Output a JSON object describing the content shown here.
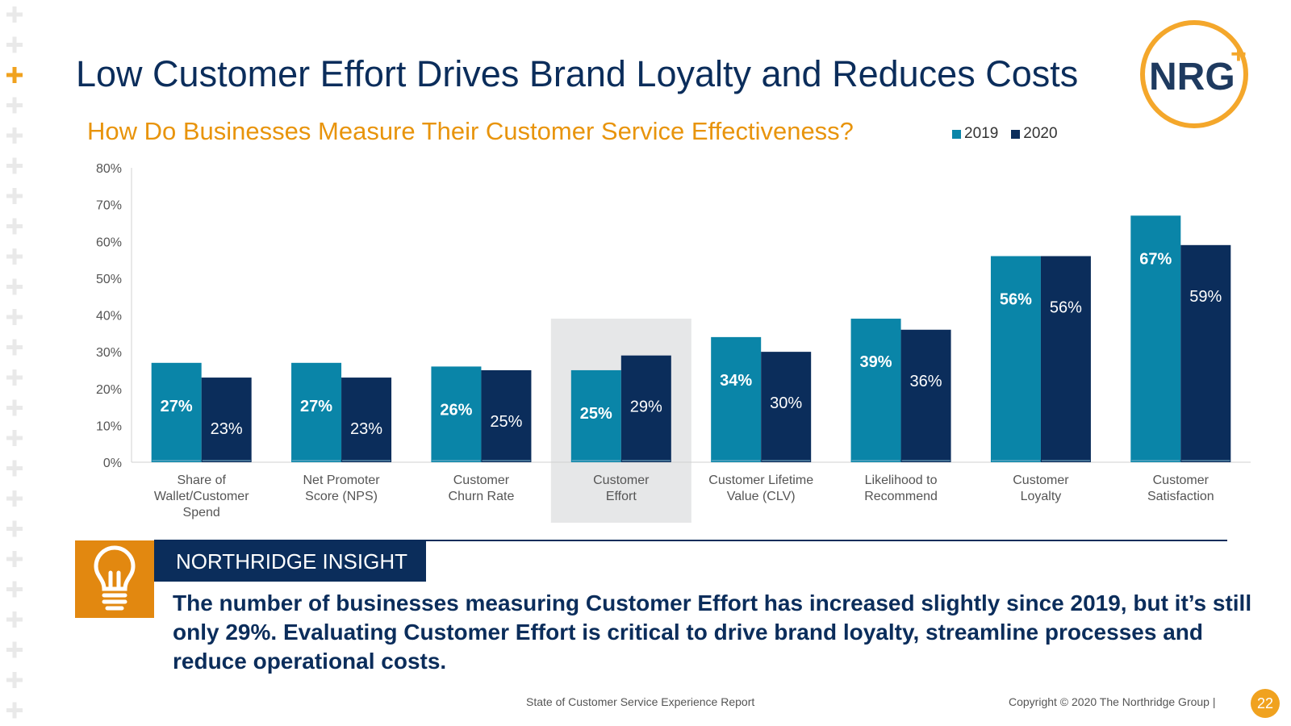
{
  "slide": {
    "title": "Low Customer Effort Drives Brand Loyalty and Reduces Costs",
    "subtitle": "How Do Businesses Measure Their Customer Service Effectiveness?"
  },
  "logo": {
    "text": "NRG",
    "plus": "+"
  },
  "legend": {
    "items": [
      "2019",
      "2020"
    ]
  },
  "colors": {
    "y2019": "#0a85a8",
    "y2020": "#0b2d5b",
    "accent_orange": "#e8940c",
    "highlight": "#e6e7e8"
  },
  "chart_data": {
    "type": "bar",
    "categories": [
      [
        "Share of",
        "Wallet/Customer",
        "Spend"
      ],
      [
        "Net Promoter",
        "Score (NPS)"
      ],
      [
        "Customer",
        "Churn Rate"
      ],
      [
        "Customer",
        "Effort"
      ],
      [
        "Customer Lifetime",
        "Value (CLV)"
      ],
      [
        "Likelihood to",
        "Recommend"
      ],
      [
        "Customer",
        "Loyalty"
      ],
      [
        "Customer",
        "Satisfaction"
      ]
    ],
    "series": [
      {
        "name": "2019",
        "values": [
          27,
          27,
          26,
          25,
          34,
          39,
          56,
          67
        ],
        "labels": [
          "27%",
          "27%",
          "26%",
          "25%",
          "34%",
          "39%",
          "56%",
          "67%"
        ]
      },
      {
        "name": "2020",
        "values": [
          23,
          23,
          25,
          29,
          30,
          36,
          56,
          59
        ],
        "labels": [
          "23%",
          "23%",
          "25%",
          "29%",
          "30%",
          "36%",
          "56%",
          "59%"
        ]
      }
    ],
    "y_ticks": [
      "0%",
      "10%",
      "20%",
      "30%",
      "40%",
      "50%",
      "60%",
      "70%",
      "80%"
    ],
    "ylim": [
      0,
      80
    ],
    "highlighted_category": "Customer Effort",
    "title": "How Do Businesses Measure Their Customer Service Effectiveness?",
    "legend_position": "top-right"
  },
  "insight": {
    "label": "NORTHRIDGE INSIGHT",
    "icon": "lightbulb-icon",
    "text": "The number of businesses measuring Customer Effort has increased slightly since 2019, but it’s still only 29%. Evaluating Customer Effort is critical to drive brand loyalty, streamline processes and reduce operational costs."
  },
  "footer": {
    "report": "State of Customer Service Experience Report",
    "copyright": "Copyright © 2020 The Northridge Group   |",
    "page_number": "22"
  }
}
